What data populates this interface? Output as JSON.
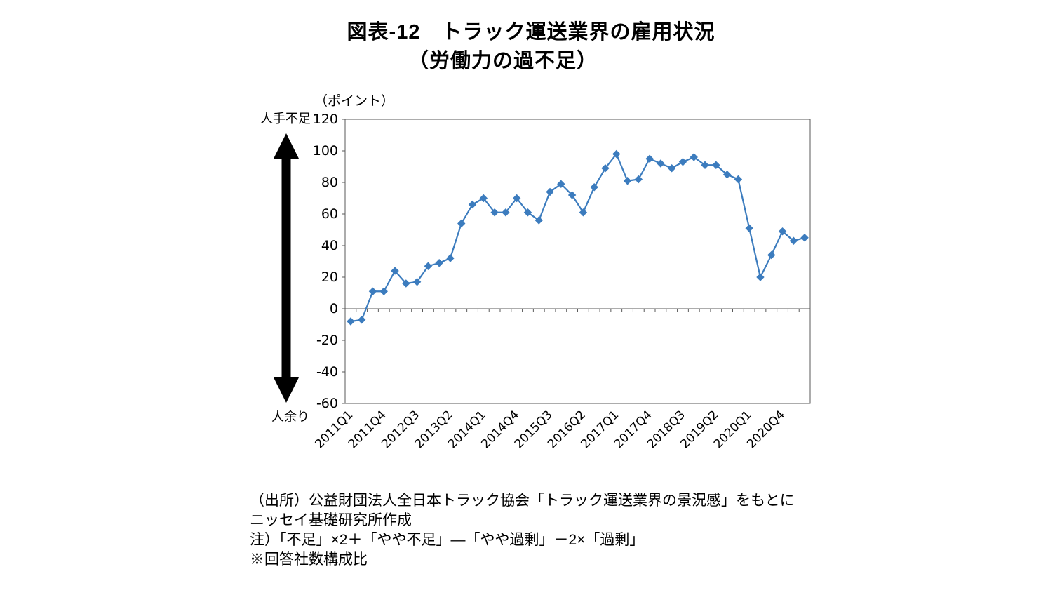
{
  "page": {
    "background": "#ffffff"
  },
  "title": {
    "line1": "図表-12　トラック運送業界の雇用状況",
    "line2": "（労働力の過不足）"
  },
  "chart": {
    "unit_label": "（ポイント）",
    "y_axis_top_label": "人手不足",
    "y_axis_bottom_label": "人余り",
    "arrow_icon": "double-headed-vertical-arrow",
    "line_color": "#3C7CBE",
    "axis_color": "#595959"
  },
  "notes": {
    "line1": "（出所）公益財団法人全日本トラック協会「トラック運送業界の景況感」をもとに",
    "line2": "ニッセイ基礎研究所作成",
    "line3": "注）「不足」×2＋「やや不足」―「やや過剰」－2×「過剰」",
    "line4": "※回答社数構成比"
  },
  "chart_data": {
    "type": "line",
    "title": "図表-12 トラック運送業界の雇用状況（労働力の過不足）",
    "xlabel": "",
    "ylabel": "（ポイント）",
    "ylim": [
      -60,
      120
    ],
    "ytick_step": 20,
    "yticks": [
      120,
      100,
      80,
      60,
      40,
      20,
      0,
      -20,
      -40,
      -60
    ],
    "grid": false,
    "legend": "none",
    "marker": "diamond",
    "x_tick_every": 3,
    "x_tick_labels": [
      "2011Q1",
      "2011Q4",
      "2012Q3",
      "2013Q2",
      "2014Q1",
      "2014Q4",
      "2015Q3",
      "2016Q2",
      "2017Q1",
      "2017Q4",
      "2018Q3",
      "2019Q2",
      "2020Q1",
      "2020Q4"
    ],
    "x": [
      "2011Q1",
      "2011Q2",
      "2011Q3",
      "2011Q4",
      "2012Q1",
      "2012Q2",
      "2012Q3",
      "2012Q4",
      "2013Q1",
      "2013Q2",
      "2013Q3",
      "2013Q4",
      "2014Q1",
      "2014Q2",
      "2014Q3",
      "2014Q4",
      "2015Q1",
      "2015Q2",
      "2015Q3",
      "2015Q4",
      "2016Q1",
      "2016Q2",
      "2016Q3",
      "2016Q4",
      "2017Q1",
      "2017Q2",
      "2017Q3",
      "2017Q4",
      "2018Q1",
      "2018Q2",
      "2018Q3",
      "2018Q4",
      "2019Q1",
      "2019Q2",
      "2019Q3",
      "2019Q4",
      "2020Q1",
      "2020Q2",
      "2020Q3",
      "2020Q4",
      "2021Q1",
      "2021Q2"
    ],
    "series": [
      {
        "name": "労働力の過不足",
        "color": "#3C7CBE",
        "values": [
          -8,
          -7,
          11,
          11,
          24,
          16,
          17,
          27,
          29,
          32,
          54,
          66,
          70,
          61,
          61,
          70,
          61,
          56,
          74,
          79,
          72,
          61,
          77,
          89,
          98,
          81,
          82,
          95,
          92,
          89,
          93,
          96,
          91,
          91,
          85,
          82,
          51,
          20,
          34,
          49,
          43,
          45
        ]
      }
    ]
  }
}
